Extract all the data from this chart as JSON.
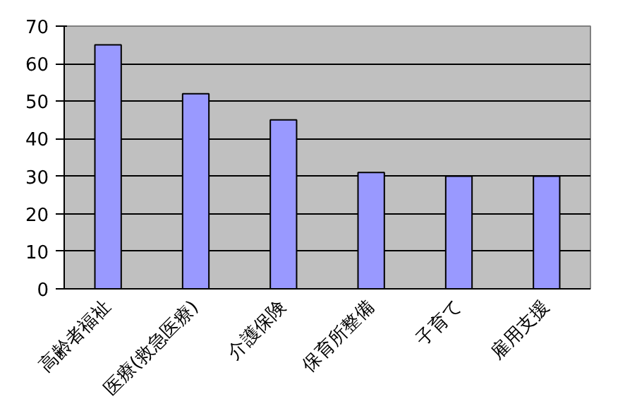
{
  "chart_data": {
    "type": "bar",
    "categories": [
      "高齢者福祉",
      "医療(救急医療)",
      "介護保険",
      "保育所整備",
      "子育て",
      "雇用支援"
    ],
    "values": [
      65,
      52,
      45,
      31,
      30,
      30
    ],
    "color": "#9999ff",
    "ylim": [
      0,
      70
    ],
    "yticks": [
      0,
      10,
      20,
      30,
      40,
      50,
      60,
      70
    ],
    "grid": "y"
  }
}
